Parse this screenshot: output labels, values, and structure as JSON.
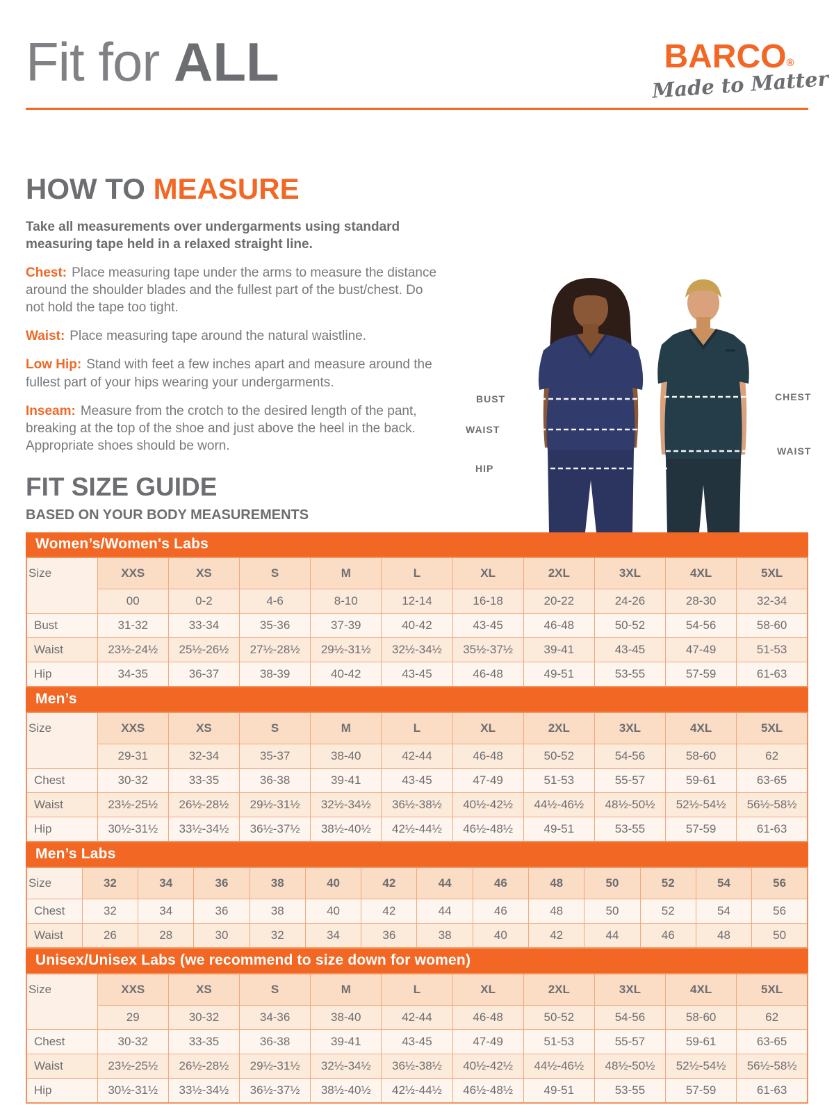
{
  "header": {
    "title_regular": "Fit for",
    "title_bold": "ALL",
    "logo": {
      "name": "BARCO",
      "reg": "®",
      "tagline": "Made to Matter"
    }
  },
  "colors": {
    "accent_orange": "#f26724",
    "heading_gray": "#6d6e71",
    "body_gray": "#77787b",
    "table_header_bg": "#fbdcc4",
    "table_row_peach": "#fceadb",
    "table_row_light": "#fdf5ee"
  },
  "how_to_measure": {
    "heading_gray": "HOW TO",
    "heading_orange": "MEASURE",
    "intro": "Take all measurements over undergarments using standard measuring tape held in a relaxed straight line.",
    "items": [
      {
        "label": "Chest:",
        "text": "Place measuring tape under the arms to measure the distance around the shoulder blades and the fullest part of the bust/chest. Do not hold the tape too tight."
      },
      {
        "label": "Waist:",
        "text": "Place measuring tape around the natural waistline."
      },
      {
        "label": "Low Hip:",
        "text": "Stand with feet a few inches apart and measure around the fullest part of your hips wearing your undergarments."
      },
      {
        "label": "Inseam:",
        "text": "Measure from the crotch to the desired length of the pant, breaking at the top of the shoe and just above the heel in the back. Appropriate shoes should be worn."
      }
    ]
  },
  "figure": {
    "left_labels": {
      "bust": "BUST",
      "waist": "WAIST",
      "hip": "HIP"
    },
    "right_labels": {
      "chest": "CHEST",
      "waist": "WAIST"
    }
  },
  "fit_size_guide": {
    "heading": "FIT SIZE GUIDE",
    "subheading": "BASED ON YOUR BODY MEASUREMENTS"
  },
  "size_tables": [
    {
      "title": "Women’s/Women's Labs",
      "label_col": "Size",
      "size_row": [
        "XXS",
        "XS",
        "S",
        "M",
        "L",
        "XL",
        "2XL",
        "3XL",
        "4XL",
        "5XL"
      ],
      "numeric_row": [
        "00",
        "0-2",
        "4-6",
        "8-10",
        "12-14",
        "16-18",
        "20-22",
        "24-26",
        "28-30",
        "32-34"
      ],
      "measure_rows": [
        {
          "label": "Bust",
          "values": [
            "31-32",
            "33-34",
            "35-36",
            "37-39",
            "40-42",
            "43-45",
            "46-48",
            "50-52",
            "54-56",
            "58-60"
          ]
        },
        {
          "label": "Waist",
          "values": [
            "23½-24½",
            "25½-26½",
            "27½-28½",
            "29½-31½",
            "32½-34½",
            "35½-37½",
            "39-41",
            "43-45",
            "47-49",
            "51-53"
          ]
        },
        {
          "label": "Hip",
          "values": [
            "34-35",
            "36-37",
            "38-39",
            "40-42",
            "43-45",
            "46-48",
            "49-51",
            "53-55",
            "57-59",
            "61-63"
          ]
        }
      ]
    },
    {
      "title": "Men’s",
      "label_col": "Size",
      "size_row": [
        "XXS",
        "XS",
        "S",
        "M",
        "L",
        "XL",
        "2XL",
        "3XL",
        "4XL",
        "5XL"
      ],
      "numeric_row": [
        "29-31",
        "32-34",
        "35-37",
        "38-40",
        "42-44",
        "46-48",
        "50-52",
        "54-56",
        "58-60",
        "62"
      ],
      "measure_rows": [
        {
          "label": "Chest",
          "values": [
            "30-32",
            "33-35",
            "36-38",
            "39-41",
            "43-45",
            "47-49",
            "51-53",
            "55-57",
            "59-61",
            "63-65"
          ]
        },
        {
          "label": "Waist",
          "values": [
            "23½-25½",
            "26½-28½",
            "29½-31½",
            "32½-34½",
            "36½-38½",
            "40½-42½",
            "44½-46½",
            "48½-50½",
            "52½-54½",
            "56½-58½"
          ]
        },
        {
          "label": "Hip",
          "values": [
            "30½-31½",
            "33½-34½",
            "36½-37½",
            "38½-40½",
            "42½-44½",
            "46½-48½",
            "49-51",
            "53-55",
            "57-59",
            "61-63"
          ]
        }
      ]
    },
    {
      "title": "Men’s Labs",
      "label_col": "Size",
      "size_row": [
        "32",
        "34",
        "36",
        "38",
        "40",
        "42",
        "44",
        "46",
        "48",
        "50",
        "52",
        "54",
        "56"
      ],
      "numeric_row": null,
      "measure_rows": [
        {
          "label": "Chest",
          "values": [
            "32",
            "34",
            "36",
            "38",
            "40",
            "42",
            "44",
            "46",
            "48",
            "50",
            "52",
            "54",
            "56"
          ]
        },
        {
          "label": "Waist",
          "values": [
            "26",
            "28",
            "30",
            "32",
            "34",
            "36",
            "38",
            "40",
            "42",
            "44",
            "46",
            "48",
            "50"
          ]
        }
      ]
    },
    {
      "title": "Unisex/Unisex Labs (we recommend to size down for women)",
      "label_col": "Size",
      "size_row": [
        "XXS",
        "XS",
        "S",
        "M",
        "L",
        "XL",
        "2XL",
        "3XL",
        "4XL",
        "5XL"
      ],
      "numeric_row": [
        "29",
        "30-32",
        "34-36",
        "38-40",
        "42-44",
        "46-48",
        "50-52",
        "54-56",
        "58-60",
        "62"
      ],
      "measure_rows": [
        {
          "label": "Chest",
          "values": [
            "30-32",
            "33-35",
            "36-38",
            "39-41",
            "43-45",
            "47-49",
            "51-53",
            "55-57",
            "59-61",
            "63-65"
          ]
        },
        {
          "label": "Waist",
          "values": [
            "23½-25½",
            "26½-28½",
            "29½-31½",
            "32½-34½",
            "36½-38½",
            "40½-42½",
            "44½-46½",
            "48½-50½",
            "52½-54½",
            "56½-58½"
          ]
        },
        {
          "label": "Hip",
          "values": [
            "30½-31½",
            "33½-34½",
            "36½-37½",
            "38½-40½",
            "42½-44½",
            "46½-48½",
            "49-51",
            "53-55",
            "57-59",
            "61-63"
          ]
        }
      ]
    }
  ]
}
